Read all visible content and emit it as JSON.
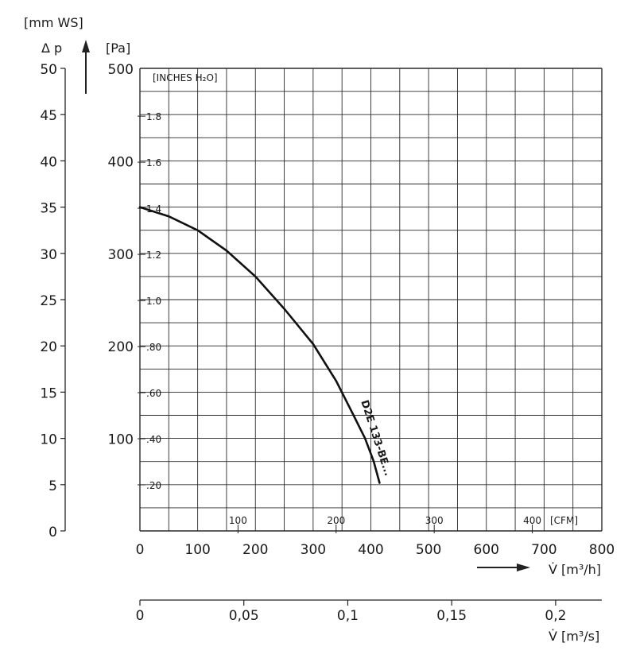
{
  "chart_data": {
    "type": "line",
    "curve_label": "D2E 133-BE...",
    "series": [
      {
        "name": "D2E 133-BE...",
        "x": [
          0,
          50,
          100,
          150,
          200,
          250,
          300,
          340,
          370,
          390,
          405,
          415
        ],
        "y": [
          350,
          340,
          325,
          303,
          275,
          240,
          202,
          162,
          125,
          100,
          75,
          52
        ]
      }
    ],
    "axes": {
      "pa": {
        "unit": "[Pa]",
        "min": 0,
        "max": 500,
        "ticks": [
          {
            "v": 100,
            "label": "100"
          },
          {
            "v": 200,
            "label": "200"
          },
          {
            "v": 300,
            "label": "300"
          },
          {
            "v": 400,
            "label": "400"
          },
          {
            "v": 500,
            "label": "500"
          }
        ]
      },
      "mmws": {
        "unit": "[mm WS]",
        "quantity": "Δ p",
        "min": 0,
        "max": 50,
        "ticks": [
          {
            "v": 0,
            "label": "0"
          },
          {
            "v": 5,
            "label": "5"
          },
          {
            "v": 10,
            "label": "10"
          },
          {
            "v": 15,
            "label": "15"
          },
          {
            "v": 20,
            "label": "20"
          },
          {
            "v": 25,
            "label": "25"
          },
          {
            "v": 30,
            "label": "30"
          },
          {
            "v": 35,
            "label": "35"
          },
          {
            "v": 40,
            "label": "40"
          },
          {
            "v": 45,
            "label": "45"
          },
          {
            "v": 50,
            "label": "50"
          }
        ]
      },
      "inches": {
        "unit": "[INCHES H₂O]",
        "ticks": [
          {
            "v": 0.2,
            "label": ".20"
          },
          {
            "v": 0.4,
            "label": ".40"
          },
          {
            "v": 0.6,
            "label": ".60"
          },
          {
            "v": 0.8,
            "label": ".80"
          },
          {
            "v": 1.0,
            "label": "1.0"
          },
          {
            "v": 1.2,
            "label": "1.2"
          },
          {
            "v": 1.4,
            "label": "1.4"
          },
          {
            "v": 1.6,
            "label": "1.6"
          },
          {
            "v": 1.8,
            "label": "1.8"
          }
        ]
      },
      "m3h": {
        "unit": "V̇ [m³/h]",
        "min": 0,
        "max": 800,
        "ticks": [
          {
            "v": 0,
            "label": "0"
          },
          {
            "v": 100,
            "label": "100"
          },
          {
            "v": 200,
            "label": "200"
          },
          {
            "v": 300,
            "label": "300"
          },
          {
            "v": 400,
            "label": "400"
          },
          {
            "v": 500,
            "label": "500"
          },
          {
            "v": 600,
            "label": "600"
          },
          {
            "v": 700,
            "label": "700"
          },
          {
            "v": 800,
            "label": "800"
          }
        ]
      },
      "cfm": {
        "unit": "[CFM]",
        "ticks": [
          {
            "v": 100,
            "label": "100"
          },
          {
            "v": 200,
            "label": "200"
          },
          {
            "v": 300,
            "label": "300"
          },
          {
            "v": 400,
            "label": "400"
          }
        ]
      },
      "m3s": {
        "unit": "V̇ [m³/s]",
        "ticks": [
          {
            "v": 0,
            "label": "0"
          },
          {
            "v": 0.05,
            "label": "0,05"
          },
          {
            "v": 0.1,
            "label": "0,1"
          },
          {
            "v": 0.15,
            "label": "0,15"
          },
          {
            "v": 0.2,
            "label": "0,2"
          }
        ]
      }
    },
    "grid": true,
    "grid_x_step": 50,
    "grid_y_step": 25
  }
}
